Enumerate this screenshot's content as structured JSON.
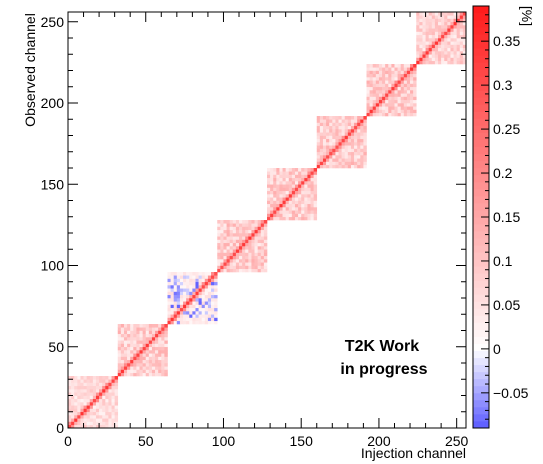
{
  "chart_data": {
    "type": "heatmap",
    "title": "",
    "xlabel": "Injection channel",
    "ylabel": "Observed channel",
    "xlim": [
      0,
      256
    ],
    "ylim": [
      0,
      256
    ],
    "x_ticks": [
      "0",
      "50",
      "100",
      "150",
      "200",
      "250"
    ],
    "y_ticks": [
      "0",
      "50",
      "100",
      "150",
      "200",
      "250"
    ],
    "colorbar": {
      "label": "[%]",
      "range": [
        -0.09,
        0.39
      ],
      "ticks": [
        "−0.05",
        "0",
        "0.05",
        "0.1",
        "0.15",
        "0.2",
        "0.25",
        "0.3",
        "0.35"
      ],
      "negative_color": "#5a5aff",
      "zero_color": "#ffffff",
      "positive_color": "#ff1a1a"
    },
    "blocks": [
      {
        "channels": [
          0,
          32
        ],
        "level": 0.05
      },
      {
        "channels": [
          32,
          64
        ],
        "level": 0.07
      },
      {
        "channels": [
          64,
          96
        ],
        "level": 0.03,
        "has_negative": true
      },
      {
        "channels": [
          96,
          128
        ],
        "level": 0.07
      },
      {
        "channels": [
          128,
          160
        ],
        "level": 0.07
      },
      {
        "channels": [
          160,
          192
        ],
        "level": 0.07
      },
      {
        "channels": [
          192,
          224
        ],
        "level": 0.07
      },
      {
        "channels": [
          224,
          256
        ],
        "level": 0.06
      }
    ],
    "diagonal_level": 0.35,
    "annotation": [
      "T2K Work",
      "in progress"
    ]
  }
}
